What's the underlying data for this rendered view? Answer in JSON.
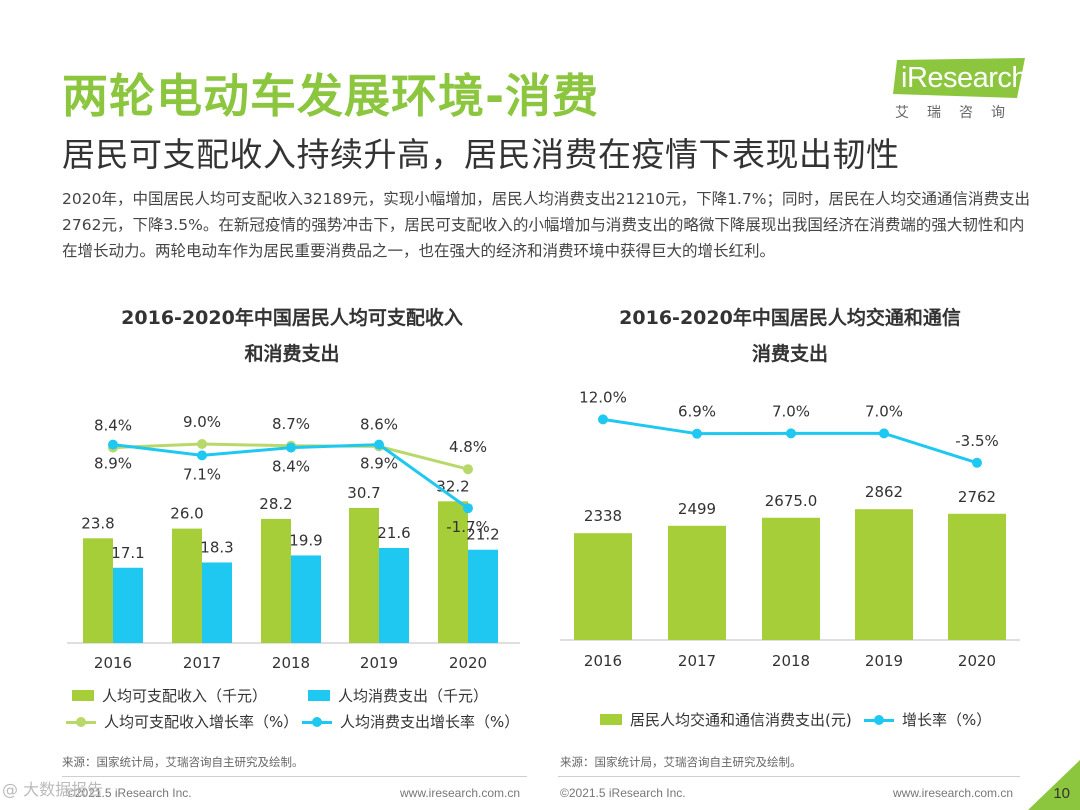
{
  "title": "两轮电动车发展环境-消费",
  "logo": {
    "name": "iResearch",
    "cn": "艾瑞咨询"
  },
  "subtitle": "居民可支配收入持续升高，居民消费在疫情下表现出韧性",
  "paragraph": "2020年，中国居民人均可支配收入32189元，实现小幅增加，居民人均消费支出21210元，下降1.7%；同时，居民在人均交通通信消费支出2762元，下降3.5%。在新冠疫情的强势冲击下，居民可支配收入的小幅增加与消费支出的略微下降展现出我国经济在消费端的强大韧性和内在增长动力。两轮电动车作为居民重要消费品之一，也在强大的经济和消费环境中获得巨大的增长红利。",
  "colors": {
    "green": "#a6ce39",
    "blue": "#1ec8f0",
    "light_green": "#b9d86a",
    "title_green": "#8cc63f"
  },
  "chart_data": [
    {
      "type": "bar",
      "title_line1": "2016-2020年中国居民人均可支配收入",
      "title_line2": "和消费支出",
      "categories": [
        "2016",
        "2017",
        "2018",
        "2019",
        "2020"
      ],
      "series": [
        {
          "name": "人均可支配收入（千元）",
          "values": [
            23.8,
            26.0,
            28.2,
            30.7,
            32.2
          ],
          "labels": [
            "23.8",
            "26.0",
            "28.2",
            "30.7",
            "32.2"
          ]
        },
        {
          "name": "人均消费支出（千元）",
          "values": [
            17.1,
            18.3,
            19.9,
            21.6,
            21.2
          ],
          "labels": [
            "17.1",
            "18.3",
            "19.9",
            "21.6",
            "21.2"
          ]
        }
      ],
      "lines": [
        {
          "name": "人均可支配收入增长率（%）",
          "values": [
            8.4,
            9.0,
            8.7,
            8.6,
            4.8
          ],
          "labels": [
            "8.4%",
            "9.0%",
            "8.7%",
            "8.6%",
            "4.8%"
          ]
        },
        {
          "name": "人均消费支出增长率（%）",
          "values": [
            8.9,
            7.1,
            8.4,
            8.9,
            -1.7
          ],
          "labels": [
            "8.9%",
            "7.1%",
            "8.4%",
            "8.9%",
            "-1.7%"
          ]
        }
      ],
      "source": "来源：国家统计局，艾瑞咨询自主研究及绘制。"
    },
    {
      "type": "bar",
      "title_line1": "2016-2020年中国居民人均交通和通信",
      "title_line2": "消费支出",
      "categories": [
        "2016",
        "2017",
        "2018",
        "2019",
        "2020"
      ],
      "series": [
        {
          "name": "居民人均交通和通信消费支出(元)",
          "values": [
            2338,
            2499,
            2675.0,
            2862,
            2762
          ],
          "labels": [
            "2338",
            "2499",
            "2675.0",
            "2862",
            "2762"
          ]
        }
      ],
      "lines": [
        {
          "name": "增长率（%）",
          "values": [
            12.0,
            6.9,
            7.0,
            7.0,
            -3.5
          ],
          "labels": [
            "12.0%",
            "6.9%",
            "7.0%",
            "7.0%",
            "-3.5%"
          ]
        }
      ],
      "source": "来源：国家统计局，艾瑞咨询自主研究及绘制。"
    }
  ],
  "footer": {
    "left_copyright": "©2021.5 iResearch Inc.",
    "left_url": "www.iresearch.com.cn",
    "right_copyright": "©2021.5 iResearch Inc.",
    "right_url": "www.iresearch.com.cn",
    "page": "10",
    "watermark": "@ 大数据报告"
  }
}
